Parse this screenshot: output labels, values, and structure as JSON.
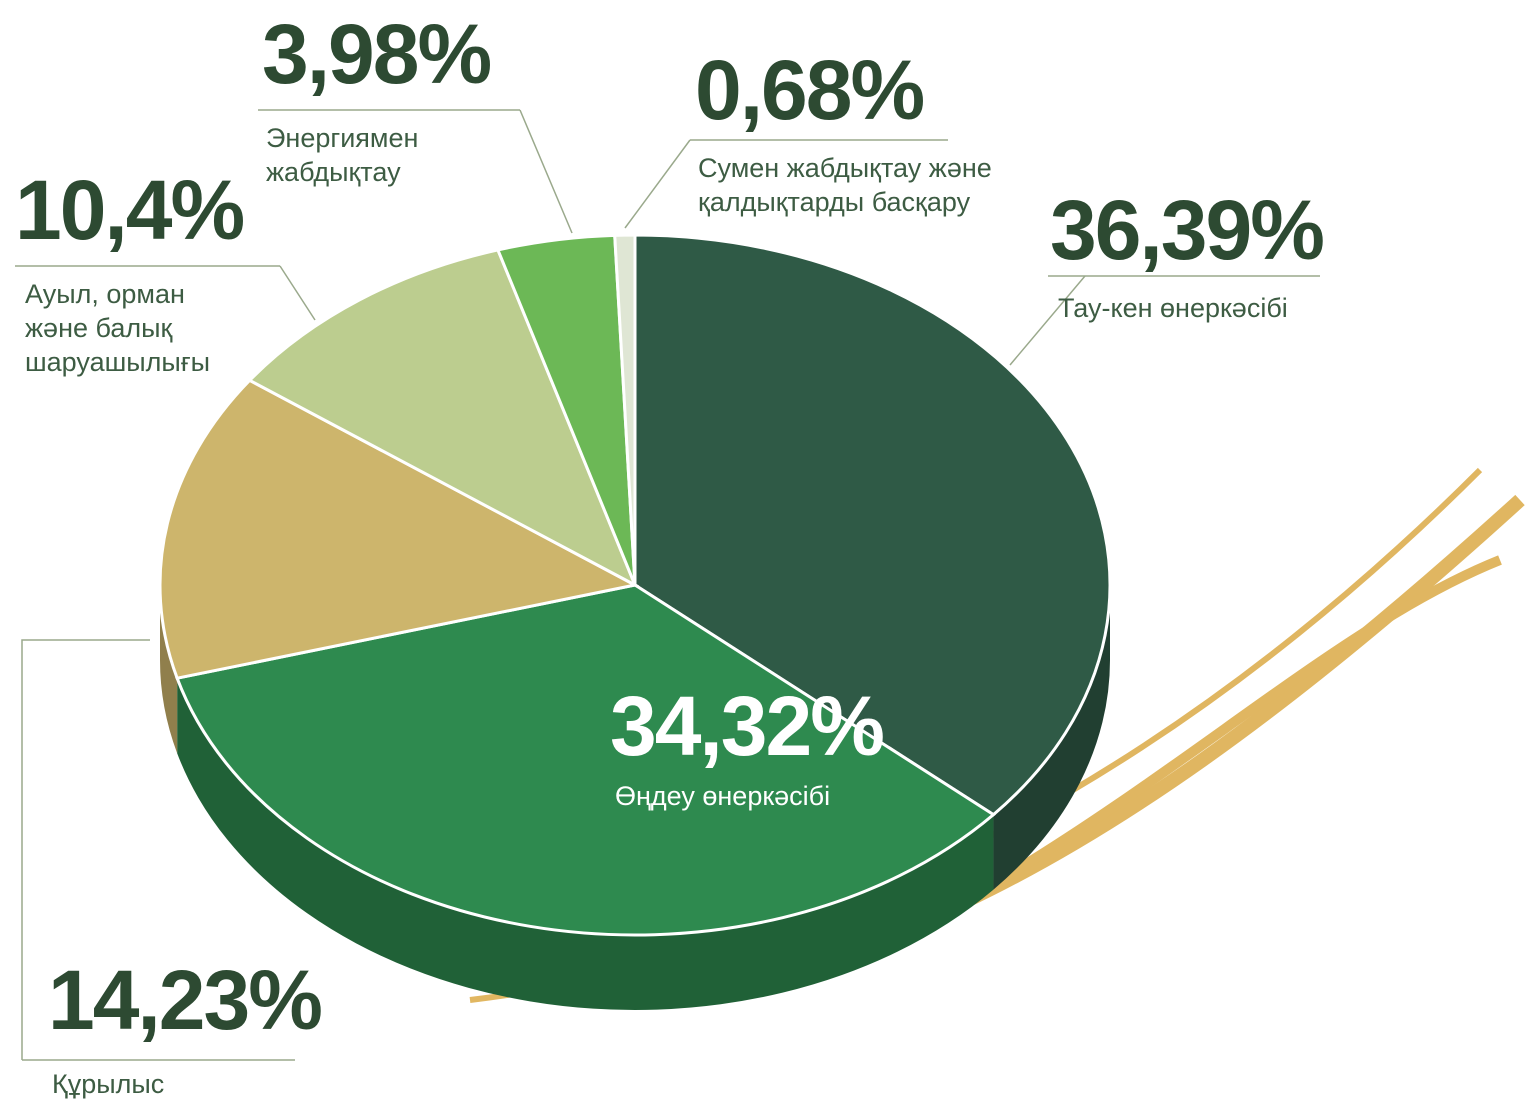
{
  "chart_data": {
    "type": "pie",
    "categories": [
      "Тау-кен өнеркәсібі",
      "Өңдеу өнеркәсібі",
      "Құрылыс",
      "Ауыл, орман және балық шаруашылығы",
      "Энергиямен жабдықтау",
      "Сумен жабдықтау және қалдықтарды басқару"
    ],
    "values": [
      36.39,
      34.32,
      14.23,
      10.4,
      3.98,
      0.68
    ],
    "value_labels": [
      "36,39%",
      "34,32%",
      "14,23%",
      "10,4%",
      "3,98%",
      "0,68%"
    ],
    "colors": [
      "#2f5a46",
      "#2e8a4f",
      "#cdb56c",
      "#bccd8f",
      "#6cb856",
      "#dfe6d4"
    ]
  }
}
